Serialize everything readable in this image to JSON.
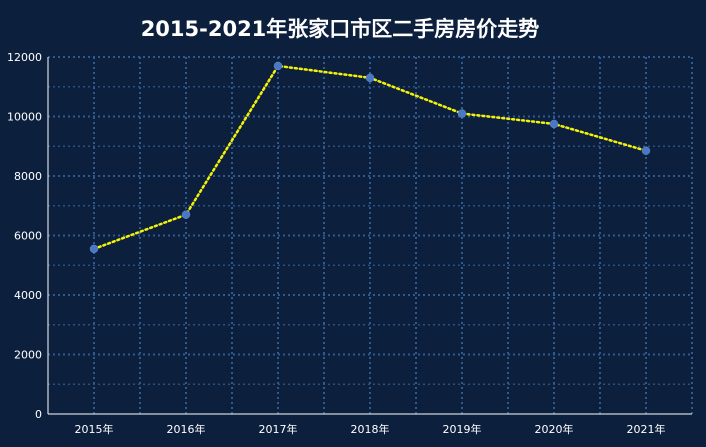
{
  "chart_data": {
    "type": "line",
    "title": "2015-2021年张家口市区二手房房价走势",
    "xlabel": "",
    "ylabel": "",
    "categories": [
      "2015年",
      "2016年",
      "2017年",
      "2018年",
      "2019年",
      "2020年",
      "2021年"
    ],
    "series": [
      {
        "values": [
          5550,
          6700,
          11700,
          11300,
          10100,
          9750,
          8850
        ]
      }
    ],
    "ylim": [
      0,
      12000
    ],
    "yticks": [
      0,
      2000,
      4000,
      6000,
      8000,
      10000,
      12000
    ],
    "grid": true,
    "legend": "none",
    "colors": {
      "background": "#0c1f3c",
      "line": "#f2f20a",
      "marker": "#4a78c2",
      "grid": "#2f5a8f",
      "axis": "#ffffff",
      "text": "#ffffff"
    }
  }
}
